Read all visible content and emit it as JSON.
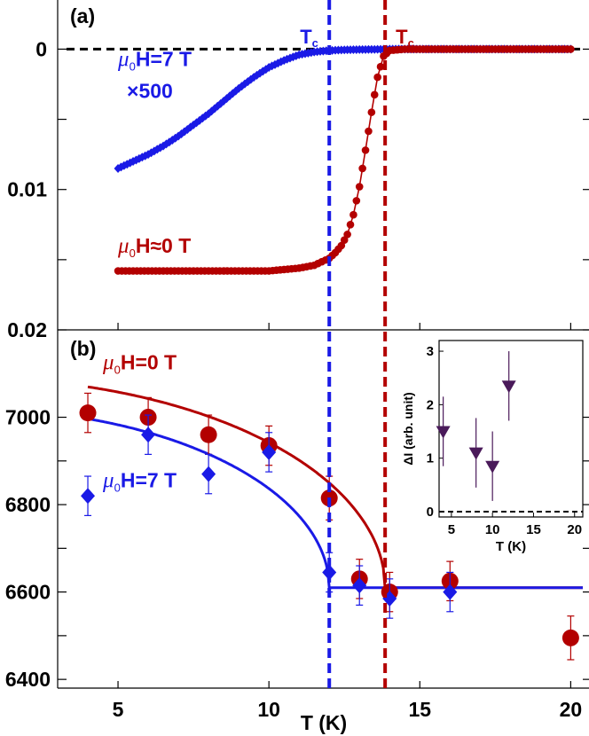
{
  "colors": {
    "red": "#b30000",
    "blue": "#1a1ae6",
    "purple": "#4a1a5a",
    "black": "#000000"
  },
  "chart_data": [
    {
      "panel_label": "(a)",
      "type": "line",
      "xlim": [
        3,
        20.4
      ],
      "ylim": [
        -0.0035,
        0.02
      ],
      "y_ticks": [
        0,
        0.005,
        0.01,
        0.015,
        0.02
      ],
      "y_tick_labels": [
        "0",
        "",
        "0.01",
        "",
        "0.02"
      ],
      "y_inverted": true,
      "annotations": {
        "tc_blue": "T",
        "tc_red": "T",
        "tc_sub": "c",
        "mu": "μ",
        "mu_sub": "0",
        "scale_text": "×500"
      },
      "tc_lines": {
        "blue": 12.0,
        "red": 13.85
      },
      "zero_line": 0,
      "series": [
        {
          "color": "blue",
          "label_rest": "H=7 T",
          "label_x": 5,
          "label_y": 0.0012,
          "points": [
            [
              5,
              0.0085
            ],
            [
              5.5,
              0.008
            ],
            [
              6,
              0.0075
            ],
            [
              6.5,
              0.0069
            ],
            [
              7,
              0.0062
            ],
            [
              7.5,
              0.0054
            ],
            [
              8,
              0.0046
            ],
            [
              8.5,
              0.0037
            ],
            [
              9,
              0.0028
            ],
            [
              9.5,
              0.002
            ],
            [
              10,
              0.0013
            ],
            [
              10.5,
              0.0008
            ],
            [
              11,
              0.0004
            ],
            [
              11.5,
              0.0002
            ],
            [
              12,
              0.0001
            ],
            [
              12.5,
              5e-05
            ],
            [
              13,
              3e-05
            ],
            [
              13.5,
              2e-05
            ],
            [
              14,
              0
            ],
            [
              15,
              0
            ],
            [
              16,
              0
            ],
            [
              17,
              0
            ],
            [
              18,
              0
            ],
            [
              19,
              0
            ],
            [
              20,
              0
            ]
          ]
        },
        {
          "color": "red",
          "label_rest": "H≈0 T",
          "label_x": 5,
          "label_y": 0.0145,
          "points": [
            [
              5,
              0.0158
            ],
            [
              6,
              0.0158
            ],
            [
              7,
              0.0158
            ],
            [
              8,
              0.0158
            ],
            [
              9,
              0.0158
            ],
            [
              10,
              0.0158
            ],
            [
              10.5,
              0.0157
            ],
            [
              11,
              0.0156
            ],
            [
              11.5,
              0.0154
            ],
            [
              12,
              0.0149
            ],
            [
              12.2,
              0.0145
            ],
            [
              12.4,
              0.014
            ],
            [
              12.6,
              0.0132
            ],
            [
              12.8,
              0.0118
            ],
            [
              13.0,
              0.0098
            ],
            [
              13.2,
              0.0072
            ],
            [
              13.4,
              0.0045
            ],
            [
              13.6,
              0.002
            ],
            [
              13.8,
              0.0005
            ],
            [
              14,
              0.0001
            ],
            [
              14.5,
              0
            ],
            [
              15,
              0
            ],
            [
              16,
              0
            ],
            [
              17,
              0
            ],
            [
              18,
              0
            ],
            [
              19,
              0
            ],
            [
              20,
              0
            ]
          ]
        }
      ]
    },
    {
      "panel_label": "(b)",
      "type": "scatter",
      "xlabel": "T (K)",
      "xlim": [
        3,
        20.4
      ],
      "x_ticks": [
        5,
        10,
        15,
        20
      ],
      "ylim": [
        6380,
        7200
      ],
      "y_ticks": [
        6400,
        6500,
        6600,
        6700,
        6800,
        6900,
        7000
      ],
      "y_tick_labels": [
        "6400",
        "",
        "6600",
        "",
        "6800",
        "",
        "7000"
      ],
      "series": [
        {
          "color": "red",
          "marker": "circle",
          "label_rest": "H=0 T",
          "label_x": 4.5,
          "label_y": 7110,
          "points": [
            [
              4,
              7010,
              45
            ],
            [
              6,
              7000,
              45
            ],
            [
              8,
              6960,
              45
            ],
            [
              10,
              6935,
              45
            ],
            [
              12,
              6815,
              50
            ],
            [
              13,
              6630,
              45
            ],
            [
              14,
              6600,
              45
            ],
            [
              16,
              6625,
              45
            ],
            [
              20,
              6495,
              50
            ]
          ],
          "fit": {
            "type": "order-parameter",
            "base": 6610,
            "amp": 480,
            "tc": 13.85,
            "tstart": 4
          }
        },
        {
          "color": "blue",
          "marker": "diamond",
          "label_rest": "H=7 T",
          "label_x": 4.5,
          "label_y": 6840,
          "points": [
            [
              4,
              6820,
              45
            ],
            [
              6,
              6960,
              45
            ],
            [
              8,
              6870,
              45
            ],
            [
              10,
              6920,
              45
            ],
            [
              12,
              6645,
              45
            ],
            [
              13,
              6615,
              45
            ],
            [
              14,
              6585,
              45
            ],
            [
              16,
              6600,
              45
            ]
          ],
          "fit": {
            "type": "order-parameter",
            "base": 6610,
            "amp": 410,
            "tc": 12.0,
            "tstart": 4
          }
        }
      ],
      "inset": {
        "type": "scatter",
        "xlabel": "T (K)",
        "ylabel": "ΔI (arb. unit)",
        "xlim": [
          3.5,
          21
        ],
        "ylim": [
          -0.1,
          3.2
        ],
        "x_ticks": [
          5,
          10,
          15,
          20
        ],
        "y_ticks": [
          0,
          1,
          2,
          3
        ],
        "marker": "triangle-down",
        "color": "purple",
        "points": [
          [
            4,
            1.5,
            0.65
          ],
          [
            8,
            1.1,
            0.65
          ],
          [
            10,
            0.85,
            0.65
          ],
          [
            12,
            2.35,
            0.65
          ]
        ]
      }
    }
  ]
}
